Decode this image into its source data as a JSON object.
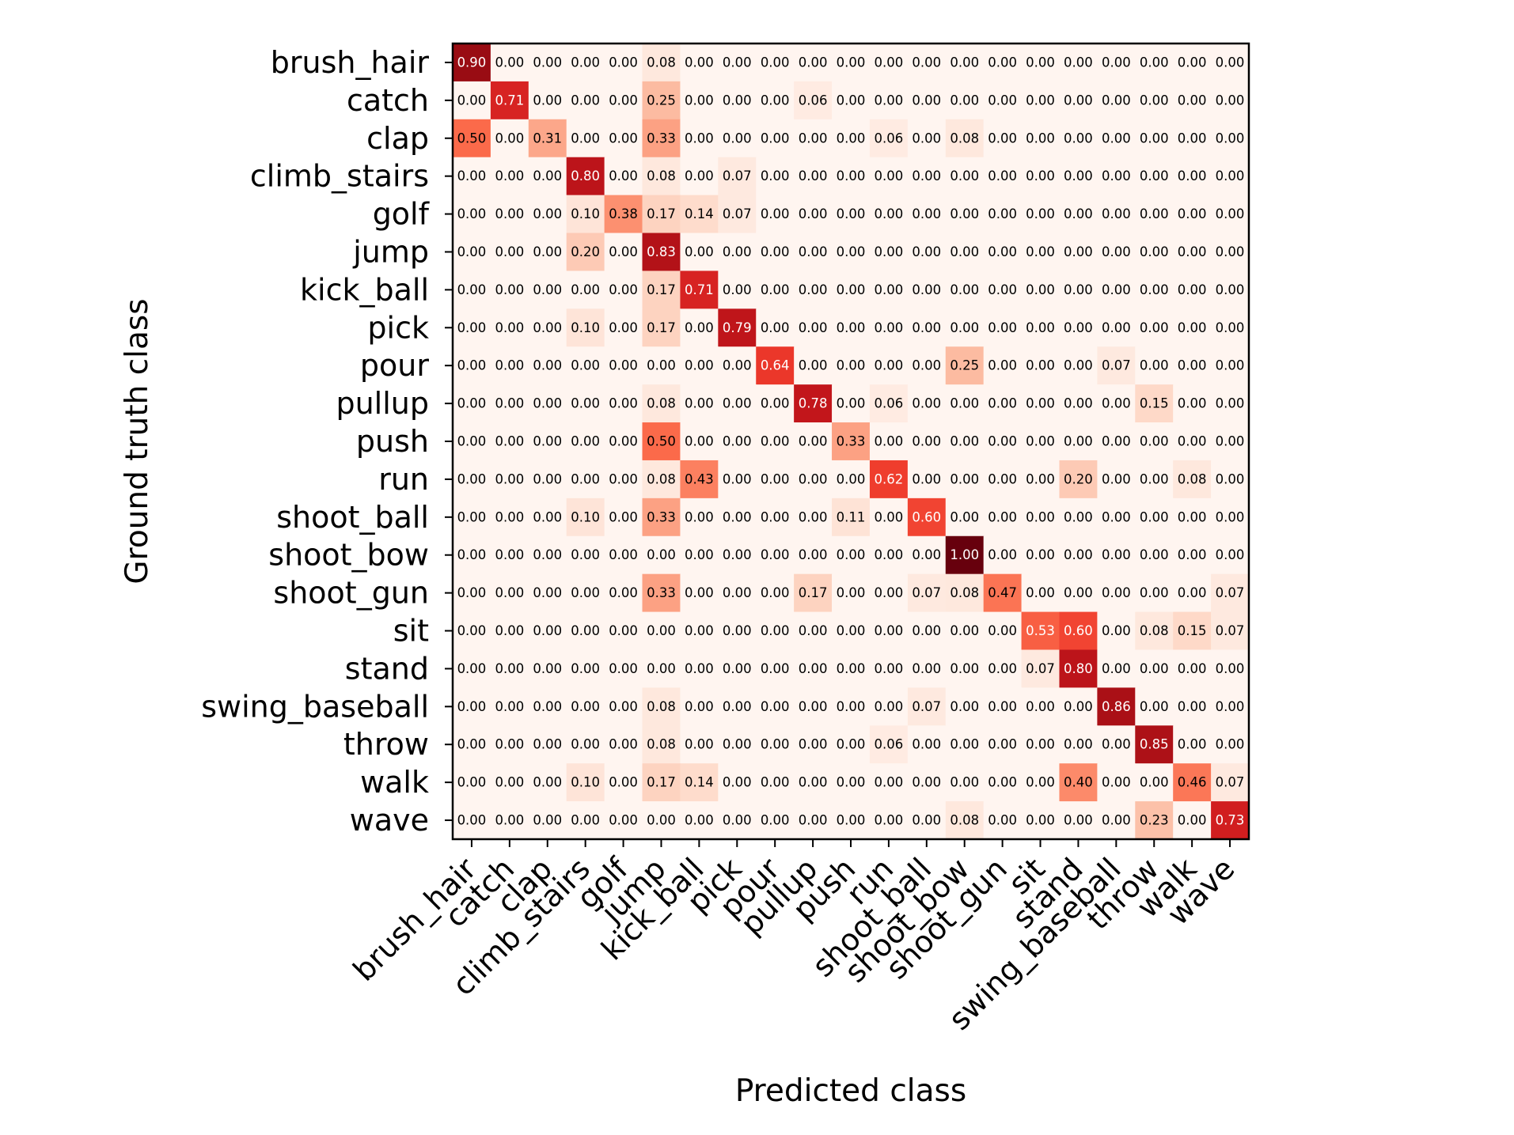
{
  "chart_data": {
    "type": "heatmap",
    "title": "",
    "xlabel": "Predicted class",
    "ylabel": "Ground truth class",
    "colormap": "Reds",
    "value_range": [
      0,
      1
    ],
    "rows": [
      "brush_hair",
      "catch",
      "clap",
      "climb_stairs",
      "golf",
      "jump",
      "kick_ball",
      "pick",
      "pour",
      "pullup",
      "push",
      "run",
      "shoot_ball",
      "shoot_bow",
      "shoot_gun",
      "sit",
      "stand",
      "swing_baseball",
      "throw",
      "walk",
      "wave"
    ],
    "columns": [
      "brush_hair",
      "catch",
      "clap",
      "climb_stairs",
      "golf",
      "jump",
      "kick_ball",
      "pick",
      "pour",
      "pullup",
      "push",
      "run",
      "shoot_ball",
      "shoot_bow",
      "shoot_gun",
      "sit",
      "stand",
      "swing_baseball",
      "throw",
      "walk",
      "wave"
    ],
    "values": [
      [
        0.9,
        0.0,
        0.0,
        0.0,
        0.0,
        0.08,
        0.0,
        0.0,
        0.0,
        0.0,
        0.0,
        0.0,
        0.0,
        0.0,
        0.0,
        0.0,
        0.0,
        0.0,
        0.0,
        0.0,
        0.0
      ],
      [
        0.0,
        0.71,
        0.0,
        0.0,
        0.0,
        0.25,
        0.0,
        0.0,
        0.0,
        0.06,
        0.0,
        0.0,
        0.0,
        0.0,
        0.0,
        0.0,
        0.0,
        0.0,
        0.0,
        0.0,
        0.0
      ],
      [
        0.5,
        0.0,
        0.31,
        0.0,
        0.0,
        0.33,
        0.0,
        0.0,
        0.0,
        0.0,
        0.0,
        0.06,
        0.0,
        0.08,
        0.0,
        0.0,
        0.0,
        0.0,
        0.0,
        0.0,
        0.0
      ],
      [
        0.0,
        0.0,
        0.0,
        0.8,
        0.0,
        0.08,
        0.0,
        0.07,
        0.0,
        0.0,
        0.0,
        0.0,
        0.0,
        0.0,
        0.0,
        0.0,
        0.0,
        0.0,
        0.0,
        0.0,
        0.0
      ],
      [
        0.0,
        0.0,
        0.0,
        0.1,
        0.38,
        0.17,
        0.14,
        0.07,
        0.0,
        0.0,
        0.0,
        0.0,
        0.0,
        0.0,
        0.0,
        0.0,
        0.0,
        0.0,
        0.0,
        0.0,
        0.0
      ],
      [
        0.0,
        0.0,
        0.0,
        0.2,
        0.0,
        0.83,
        0.0,
        0.0,
        0.0,
        0.0,
        0.0,
        0.0,
        0.0,
        0.0,
        0.0,
        0.0,
        0.0,
        0.0,
        0.0,
        0.0,
        0.0
      ],
      [
        0.0,
        0.0,
        0.0,
        0.0,
        0.0,
        0.17,
        0.71,
        0.0,
        0.0,
        0.0,
        0.0,
        0.0,
        0.0,
        0.0,
        0.0,
        0.0,
        0.0,
        0.0,
        0.0,
        0.0,
        0.0
      ],
      [
        0.0,
        0.0,
        0.0,
        0.1,
        0.0,
        0.17,
        0.0,
        0.79,
        0.0,
        0.0,
        0.0,
        0.0,
        0.0,
        0.0,
        0.0,
        0.0,
        0.0,
        0.0,
        0.0,
        0.0,
        0.0
      ],
      [
        0.0,
        0.0,
        0.0,
        0.0,
        0.0,
        0.0,
        0.0,
        0.0,
        0.64,
        0.0,
        0.0,
        0.0,
        0.0,
        0.25,
        0.0,
        0.0,
        0.0,
        0.07,
        0.0,
        0.0,
        0.0
      ],
      [
        0.0,
        0.0,
        0.0,
        0.0,
        0.0,
        0.08,
        0.0,
        0.0,
        0.0,
        0.78,
        0.0,
        0.06,
        0.0,
        0.0,
        0.0,
        0.0,
        0.0,
        0.0,
        0.15,
        0.0,
        0.0
      ],
      [
        0.0,
        0.0,
        0.0,
        0.0,
        0.0,
        0.5,
        0.0,
        0.0,
        0.0,
        0.0,
        0.33,
        0.0,
        0.0,
        0.0,
        0.0,
        0.0,
        0.0,
        0.0,
        0.0,
        0.0,
        0.0
      ],
      [
        0.0,
        0.0,
        0.0,
        0.0,
        0.0,
        0.08,
        0.43,
        0.0,
        0.0,
        0.0,
        0.0,
        0.62,
        0.0,
        0.0,
        0.0,
        0.0,
        0.2,
        0.0,
        0.0,
        0.08,
        0.0
      ],
      [
        0.0,
        0.0,
        0.0,
        0.1,
        0.0,
        0.33,
        0.0,
        0.0,
        0.0,
        0.0,
        0.11,
        0.0,
        0.6,
        0.0,
        0.0,
        0.0,
        0.0,
        0.0,
        0.0,
        0.0,
        0.0
      ],
      [
        0.0,
        0.0,
        0.0,
        0.0,
        0.0,
        0.0,
        0.0,
        0.0,
        0.0,
        0.0,
        0.0,
        0.0,
        0.0,
        1.0,
        0.0,
        0.0,
        0.0,
        0.0,
        0.0,
        0.0,
        0.0
      ],
      [
        0.0,
        0.0,
        0.0,
        0.0,
        0.0,
        0.33,
        0.0,
        0.0,
        0.0,
        0.17,
        0.0,
        0.0,
        0.07,
        0.08,
        0.47,
        0.0,
        0.0,
        0.0,
        0.0,
        0.0,
        0.07
      ],
      [
        0.0,
        0.0,
        0.0,
        0.0,
        0.0,
        0.0,
        0.0,
        0.0,
        0.0,
        0.0,
        0.0,
        0.0,
        0.0,
        0.0,
        0.0,
        0.53,
        0.6,
        0.0,
        0.08,
        0.15,
        0.07
      ],
      [
        0.0,
        0.0,
        0.0,
        0.0,
        0.0,
        0.0,
        0.0,
        0.0,
        0.0,
        0.0,
        0.0,
        0.0,
        0.0,
        0.0,
        0.0,
        0.07,
        0.8,
        0.0,
        0.0,
        0.0,
        0.0
      ],
      [
        0.0,
        0.0,
        0.0,
        0.0,
        0.0,
        0.08,
        0.0,
        0.0,
        0.0,
        0.0,
        0.0,
        0.0,
        0.07,
        0.0,
        0.0,
        0.0,
        0.0,
        0.86,
        0.0,
        0.0,
        0.0
      ],
      [
        0.0,
        0.0,
        0.0,
        0.0,
        0.0,
        0.08,
        0.0,
        0.0,
        0.0,
        0.0,
        0.0,
        0.06,
        0.0,
        0.0,
        0.0,
        0.0,
        0.0,
        0.0,
        0.85,
        0.0,
        0.0
      ],
      [
        0.0,
        0.0,
        0.0,
        0.1,
        0.0,
        0.17,
        0.14,
        0.0,
        0.0,
        0.0,
        0.0,
        0.0,
        0.0,
        0.0,
        0.0,
        0.0,
        0.4,
        0.0,
        0.0,
        0.46,
        0.07
      ],
      [
        0.0,
        0.0,
        0.0,
        0.0,
        0.0,
        0.0,
        0.0,
        0.0,
        0.0,
        0.0,
        0.0,
        0.0,
        0.0,
        0.08,
        0.0,
        0.0,
        0.0,
        0.0,
        0.23,
        0.0,
        0.73
      ]
    ],
    "grid": false,
    "legend": "none"
  }
}
